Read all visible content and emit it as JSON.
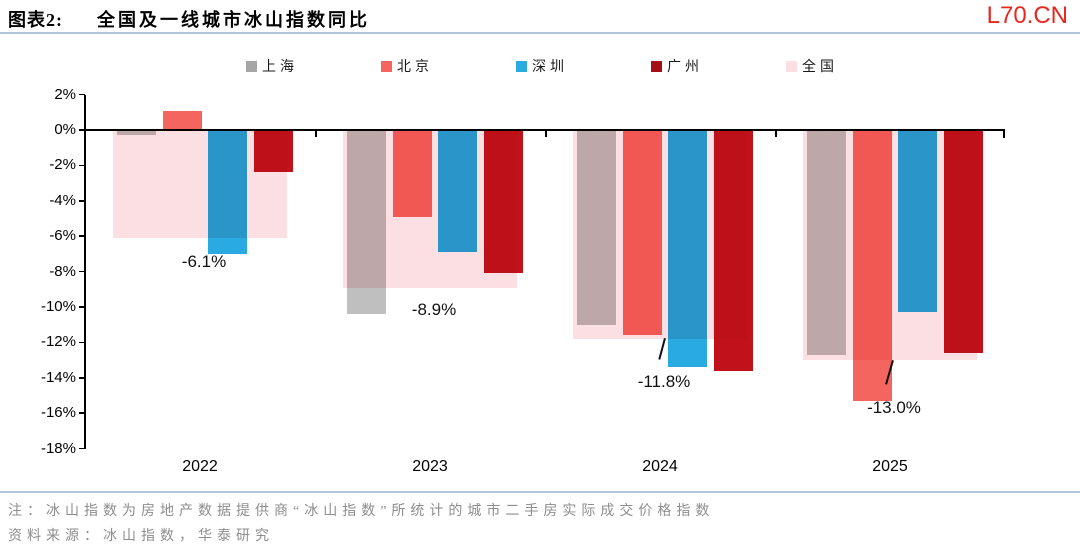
{
  "header": {
    "tag": "图表2:",
    "title": "全国及一线城市冰山指数同比",
    "watermark": "L70.CN"
  },
  "footer": {
    "note": "注：冰山指数为房地产数据提供商“冰山指数”所统计的城市二手房实际成交价格指数",
    "source": "资料来源：冰山指数，华泰研究"
  },
  "colors": {
    "watermark_red": "#e8281e",
    "divider_blue": "#b3c6d9",
    "axis_black": "#000000",
    "note_gray": "#8d8d8d"
  },
  "chart_data": {
    "type": "bar",
    "title": "全国及一线城市冰山指数同比",
    "unit": "%",
    "categories": [
      "2022",
      "2023",
      "2024",
      "2025"
    ],
    "series": [
      {
        "name": "上海",
        "color": "#bfbfbf",
        "legend_color": "#a6a6a6",
        "values": [
          -0.3,
          -10.4,
          -11.0,
          -12.7
        ]
      },
      {
        "name": "北京",
        "color": "#f4655f",
        "legend_color": "#f4655f",
        "values": [
          1.1,
          -4.9,
          -11.6,
          -15.3
        ]
      },
      {
        "name": "深圳",
        "color": "#29abe2",
        "legend_color": "#29abe2",
        "values": [
          -7.0,
          -6.9,
          -13.4,
          -10.3
        ]
      },
      {
        "name": "广州",
        "color": "#c1121c",
        "legend_color": "#a50f15",
        "values": [
          -2.4,
          -8.1,
          -13.6,
          -12.6
        ]
      },
      {
        "name": "全国",
        "color": "#fcdfe2",
        "legend_color": "#fcdfe2",
        "values": [
          -6.1,
          -8.9,
          -11.8,
          -13.0
        ],
        "role": "background"
      }
    ],
    "data_labels": [
      "-6.1%",
      "-8.9%",
      "-11.8%",
      "-13.0%"
    ],
    "data_label_series": "全国",
    "y_ticks": [
      "2%",
      "0%",
      "-2%",
      "-4%",
      "-6%",
      "-8%",
      "-10%",
      "-12%",
      "-14%",
      "-16%",
      "-18%"
    ],
    "ylim": [
      -18,
      2
    ],
    "legend_position": "top",
    "grid": false
  }
}
